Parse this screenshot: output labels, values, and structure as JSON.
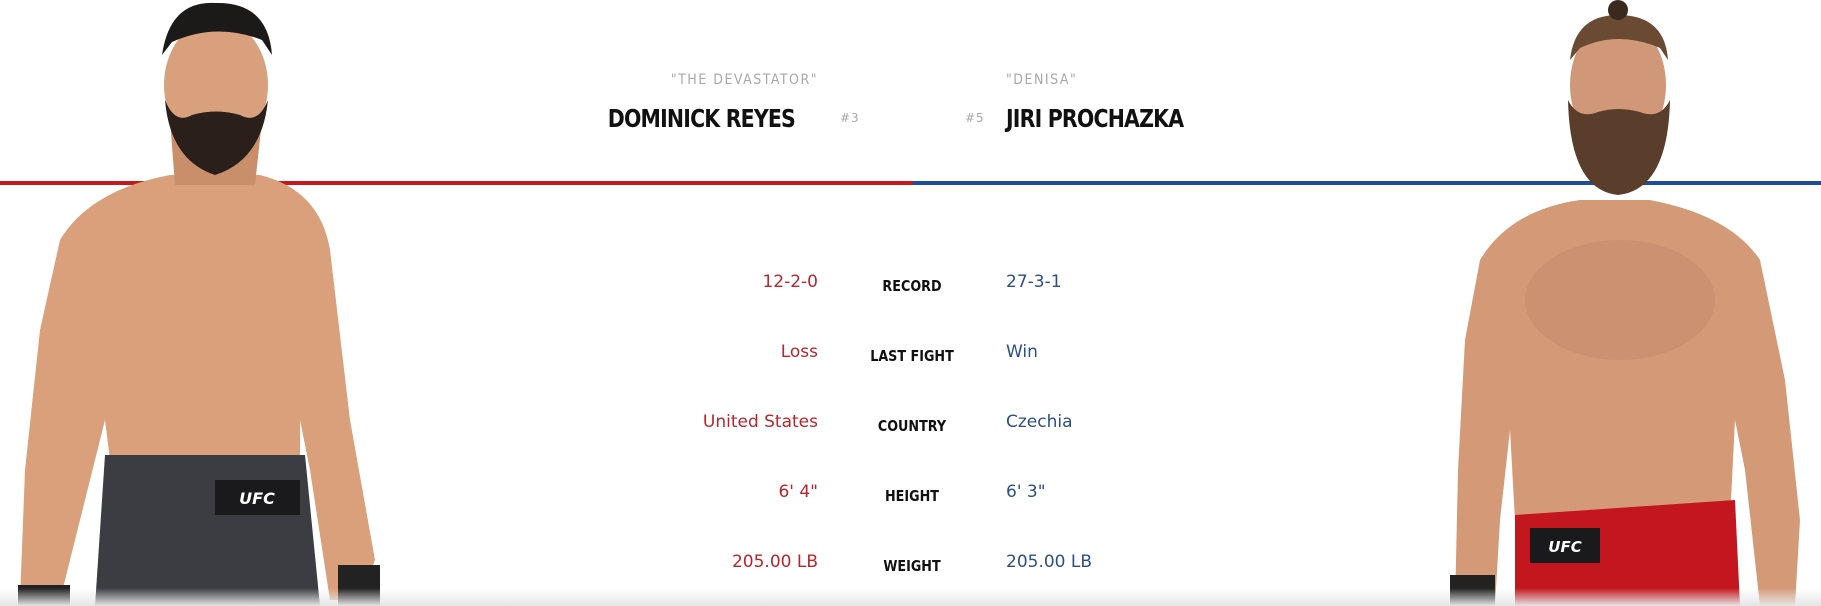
{
  "red_corner": {
    "nickname": "\"THE DEVASTATOR\"",
    "name": "DOMINICK REYES",
    "rank": "#3",
    "color": "#c8161d",
    "shorts_logo": "UFC"
  },
  "blue_corner": {
    "nickname": "\"DENISA\"",
    "name": "JIRI PROCHAZKA",
    "rank": "#5",
    "color": "#1f4e96",
    "shorts_logo": "UFC"
  },
  "stats": [
    {
      "label": "RECORD",
      "red": "12-2-0",
      "blue": "27-3-1"
    },
    {
      "label": "LAST FIGHT",
      "red": "Loss",
      "blue": "Win"
    },
    {
      "label": "COUNTRY",
      "red": "United States",
      "blue": "Czechia"
    },
    {
      "label": "HEIGHT",
      "red": "6' 4\"",
      "blue": "6' 3\""
    },
    {
      "label": "WEIGHT",
      "red": "205.00 LB",
      "blue": "205.00 LB"
    }
  ]
}
